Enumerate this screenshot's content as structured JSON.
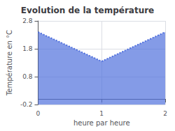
{
  "chart_data": {
    "type": "area",
    "title": "Evolution de la température",
    "xlabel": "heure par heure",
    "ylabel": "Température en °C",
    "x": [
      0,
      1,
      2
    ],
    "values": [
      2.4,
      1.35,
      2.4
    ],
    "xlim": [
      0,
      2
    ],
    "ylim": [
      -0.2,
      2.8
    ],
    "xticks": [
      0,
      1,
      2
    ],
    "yticks": [
      -0.2,
      0.8,
      1.8,
      2.8
    ],
    "grid": true,
    "line_style": "dotted"
  }
}
